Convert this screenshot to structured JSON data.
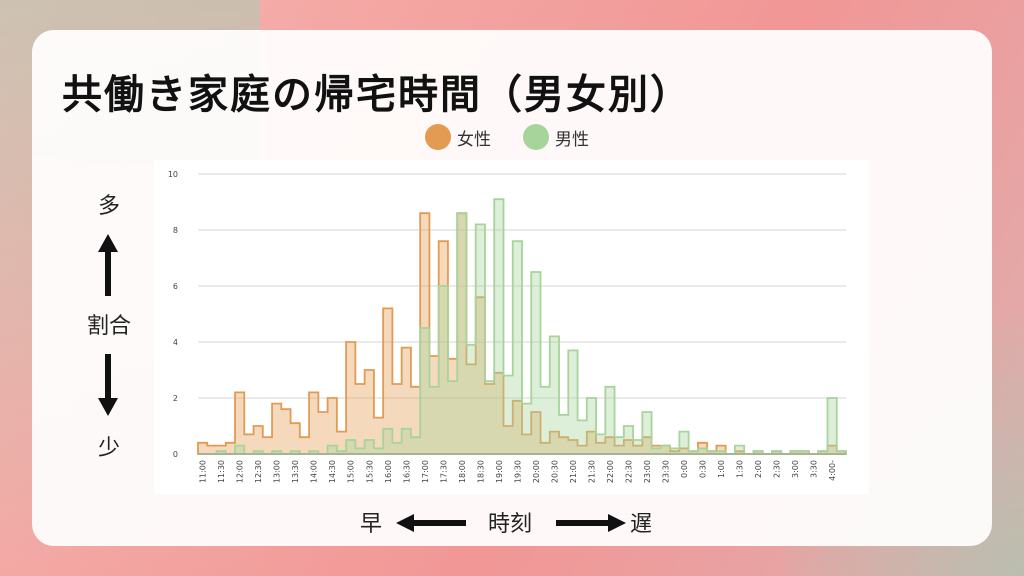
{
  "title": "共働き家庭の帰宅時間（男女別）",
  "legend": {
    "female": {
      "label": "女性",
      "color": "#e39a52"
    },
    "male": {
      "label": "男性",
      "color": "#a7d49a"
    }
  },
  "y_axis_side": {
    "top": "多",
    "middle": "割合",
    "bottom": "少"
  },
  "x_axis_bottom": {
    "left": "早",
    "middle": "時刻",
    "right": "遅"
  },
  "chart_data": {
    "type": "area",
    "ylim": [
      0,
      10
    ],
    "yticks": [
      0,
      2,
      4,
      6,
      8,
      10
    ],
    "grid": true,
    "legend_position": "top",
    "xtick_labels": [
      "11:00",
      "11:30",
      "12:00",
      "12:30",
      "13:00",
      "13:30",
      "14:00",
      "14:30",
      "15:00",
      "15:30",
      "16:00",
      "16:30",
      "17:00",
      "17:30",
      "18:00",
      "18:30",
      "19:00",
      "19:30",
      "20:00",
      "20:30",
      "21:00",
      "21:30",
      "22:00",
      "22:30",
      "23:00",
      "23:30",
      "0:00",
      "0:30",
      "1:00",
      "1:30",
      "2:00",
      "2:30",
      "3:00",
      "3:30",
      "4:00-"
    ],
    "series": [
      {
        "name": "女性",
        "color": "#e39a52",
        "values": [
          0.4,
          0.3,
          0.3,
          0.4,
          2.2,
          0.7,
          1.0,
          0.6,
          1.8,
          1.6,
          1.1,
          0.6,
          2.2,
          1.5,
          2.0,
          0.8,
          4.0,
          2.5,
          3.0,
          1.3,
          5.2,
          2.5,
          3.8,
          2.4,
          8.6,
          3.5,
          7.6,
          3.4,
          8.6,
          3.2,
          5.6,
          2.5,
          2.9,
          1.0,
          1.9,
          0.7,
          1.5,
          0.4,
          0.8,
          0.6,
          0.5,
          0.3,
          0.8,
          0.4,
          0.6,
          0.3,
          0.5,
          0.3,
          0.6,
          0.3,
          0.3,
          0.1,
          0.2,
          0.1,
          0.4,
          0.1,
          0.3,
          0.0,
          0.1,
          0.0,
          0.1,
          0.0,
          0.1,
          0.0,
          0.1,
          0.1,
          0.0,
          0.1,
          0.3,
          0.1
        ]
      },
      {
        "name": "男性",
        "color": "#a7d49a",
        "values": [
          0.0,
          0.0,
          0.1,
          0.0,
          0.3,
          0.0,
          0.1,
          0.0,
          0.1,
          0.0,
          0.1,
          0.0,
          0.1,
          0.0,
          0.3,
          0.1,
          0.5,
          0.2,
          0.5,
          0.2,
          0.9,
          0.4,
          0.9,
          0.6,
          4.5,
          2.4,
          6.0,
          2.6,
          8.6,
          3.9,
          8.2,
          2.6,
          9.1,
          2.8,
          7.6,
          1.8,
          6.5,
          2.4,
          4.2,
          1.4,
          3.7,
          1.2,
          2.0,
          0.7,
          2.4,
          0.6,
          1.0,
          0.5,
          1.5,
          0.2,
          0.3,
          0.2,
          0.8,
          0.1,
          0.2,
          0.1,
          0.1,
          0.0,
          0.3,
          0.0,
          0.1,
          0.0,
          0.1,
          0.0,
          0.1,
          0.1,
          0.0,
          0.1,
          2.0,
          0.1
        ]
      }
    ]
  }
}
